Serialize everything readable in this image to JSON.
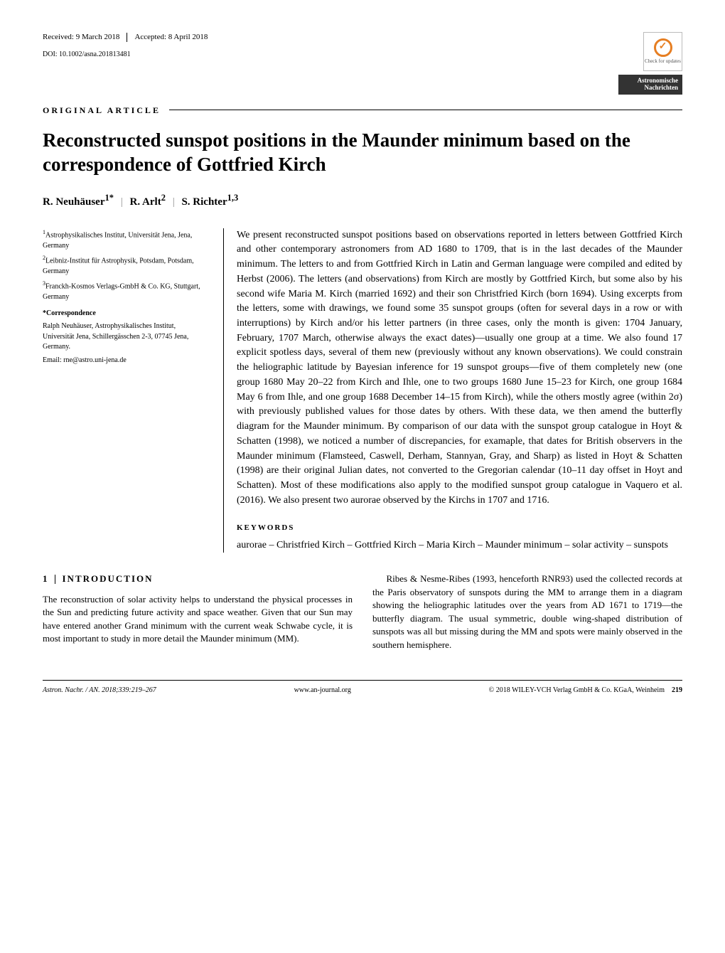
{
  "header": {
    "received": "Received: 9 March 2018",
    "accepted": "Accepted: 8 April 2018",
    "doi": "DOI: 10.1002/asna.201813481",
    "article_type": "ORIGINAL ARTICLE",
    "check_updates": "Check for updates",
    "journal_badge_line1": "Astronomische",
    "journal_badge_line2": "Nachrichten"
  },
  "title": "Reconstructed sunspot positions in the Maunder minimum based on the correspondence of Gottfried Kirch",
  "authors": {
    "a1": "R. Neuhäuser",
    "a1_sup": "1*",
    "a2": "R. Arlt",
    "a2_sup": "2",
    "a3": "S. Richter",
    "a3_sup": "1,3"
  },
  "affiliations": {
    "aff1": "Astrophysikalisches Institut, Universität Jena, Jena, Germany",
    "aff2": "Leibniz-Institut für Astrophysik, Potsdam, Potsdam, Germany",
    "aff3": "Franckh-Kosmos Verlags-GmbH & Co. KG, Stuttgart, Germany",
    "corr_label": "*Correspondence",
    "corr_text": "Ralph Neuhäuser, Astrophysikalisches Institut, Universität Jena, Schillergässchen 2-3, 07745 Jena, Germany.",
    "corr_email": "Email: rne@astro.uni-jena.de"
  },
  "abstract": "We present reconstructed sunspot positions based on observations reported in letters between Gottfried Kirch and other contemporary astronomers from AD 1680 to 1709, that is in the last decades of the Maunder minimum. The letters to and from Gottfried Kirch in Latin and German language were compiled and edited by Herbst (2006). The letters (and observations) from Kirch are mostly by Gottfried Kirch, but some also by his second wife Maria M. Kirch (married 1692) and their son Christfried Kirch (born 1694). Using excerpts from the letters, some with drawings, we found some 35 sunspot groups (often for several days in a row or with interruptions) by Kirch and/or his letter partners (in three cases, only the month is given: 1704 January, February, 1707 March, otherwise always the exact dates)—usually one group at a time. We also found 17 explicit spotless days, several of them new (previously without any known observations). We could constrain the heliographic latitude by Bayesian inference for 19 sunspot groups—five of them completely new (one group 1680 May 20–22 from Kirch and Ihle, one to two groups 1680 June 15–23 for Kirch, one group 1684 May 6 from Ihle, and one group 1688 December 14–15 from Kirch), while the others mostly agree (within 2σ) with previously published values for those dates by others. With these data, we then amend the butterfly diagram for the Maunder minimum. By comparison of our data with the sunspot group catalogue in Hoyt & Schatten (1998), we noticed a number of discrepancies, for examaple, that dates for British observers in the Maunder minimum (Flamsteed, Caswell, Derham, Stannyan, Gray, and Sharp) as listed in Hoyt & Schatten (1998) are their original Julian dates, not converted to the Gregorian calendar (10–11 day offset in Hoyt and Schatten). Most of these modifications also apply to the modified sunspot group catalogue in Vaquero et al. (2016). We also present two aurorae observed by the Kirchs in 1707 and 1716.",
  "keywords_label": "KEYWORDS",
  "keywords": "aurorae – Christfried Kirch – Gottfried Kirch – Maria Kirch – Maunder minimum – solar activity – sunspots",
  "section1": {
    "num": "1",
    "title": "INTRODUCTION",
    "p1": "The reconstruction of solar activity helps to understand the physical processes in the Sun and predicting future activity and space weather. Given that our Sun may have entered another Grand minimum with the current weak Schwabe cycle, it is most important to study in more detail the Maunder minimum (MM).",
    "p2": "Ribes & Nesme-Ribes (1993, henceforth RNR93) used the collected records at the Paris observatory of sunspots during the MM to arrange them in a diagram showing the heliographic latitudes over the years from AD 1671 to 1719—the butterfly diagram. The usual symmetric, double wing-shaped distribution of sunspots was all but missing during the MM and spots were mainly observed in the southern hemisphere."
  },
  "footer": {
    "left": "Astron. Nachr. / AN. 2018;339:219–267",
    "center": "www.an-journal.org",
    "right": "© 2018 WILEY-VCH Verlag GmbH & Co. KGaA, Weinheim",
    "page": "219"
  },
  "style": {
    "badge_bg": "#333333",
    "accent_orange": "#e67e22",
    "title_fontsize": 27,
    "body_fontsize": 13,
    "abstract_fontsize": 14,
    "affil_fontsize": 10,
    "footer_fontsize": 10
  }
}
